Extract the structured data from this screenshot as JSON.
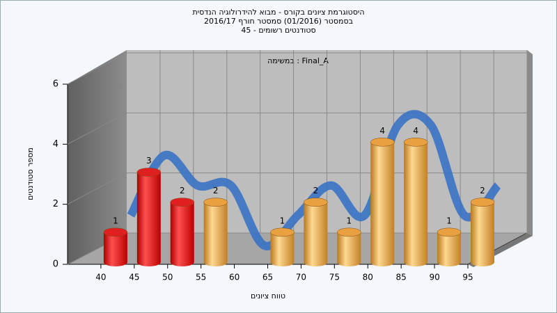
{
  "chart_data": {
    "type": "bar3d",
    "title": [
      "היסטוגרמת ציונים בקורס - מבוא להידרולוגיה הנדסית",
      "בסמסטר  (01/2016)  סמסטר חורף 2016/17",
      "סטודנטים רשומים - 45"
    ],
    "annotation": "במשימה : Final_A",
    "x_label": "טווח ציונים",
    "y_label": "מספר סטודנטים",
    "categories": [
      "40",
      "45",
      "50",
      "55",
      "60",
      "65",
      "70",
      "75",
      "80",
      "85",
      "90",
      "95"
    ],
    "values": [
      1,
      3,
      2,
      2,
      0,
      1,
      2,
      1,
      4,
      4,
      1,
      2
    ],
    "value_labels": [
      "1",
      "3",
      "2",
      "2",
      null,
      "1",
      "2",
      "1",
      "4",
      "4",
      "1",
      "2"
    ],
    "colors": [
      "#e02020",
      "#e02020",
      "#e02020",
      "#e8a040",
      "#e8a040",
      "#e8a040",
      "#e8a040",
      "#e8a040",
      "#e8a040",
      "#e8a040",
      "#e8a040",
      "#e8a040"
    ],
    "trend_color": "#3a72c4",
    "ylim": [
      0,
      6
    ],
    "yticks": [
      0,
      2,
      4,
      6
    ],
    "grid": true
  }
}
